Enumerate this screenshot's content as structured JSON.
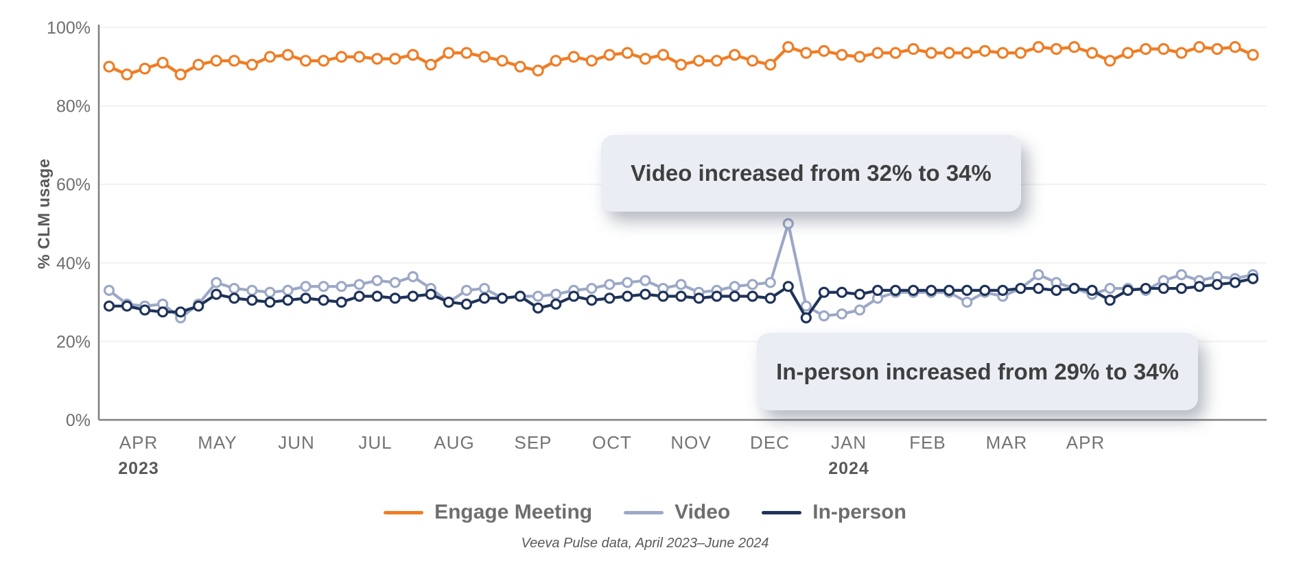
{
  "chart_data": {
    "type": "line",
    "title": "",
    "ylabel": "% CLM usage",
    "ylim": [
      0,
      100
    ],
    "yticks": [
      0,
      20,
      40,
      60,
      80,
      100
    ],
    "ytick_suffix": "%",
    "grid": true,
    "legend_position": "bottom",
    "x_unit": "weekly",
    "x_months": [
      {
        "label": "APR",
        "year": "2023"
      },
      {
        "label": "MAY"
      },
      {
        "label": "JUN"
      },
      {
        "label": "JUL"
      },
      {
        "label": "AUG"
      },
      {
        "label": "SEP"
      },
      {
        "label": "OCT"
      },
      {
        "label": "NOV"
      },
      {
        "label": "DEC"
      },
      {
        "label": "JAN",
        "year": "2024"
      },
      {
        "label": "FEB"
      },
      {
        "label": "MAR"
      },
      {
        "label": "APR"
      }
    ],
    "series": [
      {
        "name": "Engage Meeting",
        "color": "#EF7D25",
        "values": [
          90,
          88,
          89.5,
          91,
          88,
          90.5,
          91.5,
          91.5,
          90.5,
          92.5,
          93,
          91.5,
          91.5,
          92.5,
          92.5,
          92,
          92,
          93,
          90.5,
          93.5,
          93.5,
          92.5,
          91.5,
          90,
          89,
          91.5,
          92.5,
          91.5,
          93,
          93.5,
          92,
          93,
          90.5,
          91.5,
          91.5,
          93,
          91.5,
          90.5,
          95,
          93.5,
          94,
          93,
          92.5,
          93.5,
          93.5,
          94.5,
          93.5,
          93.5,
          93.5,
          94,
          93.5,
          93.5,
          95,
          94.5,
          95,
          93.5,
          91.5,
          93.5,
          94.5,
          94.5,
          93.5,
          95,
          94.5,
          95,
          93
        ]
      },
      {
        "name": "Video",
        "color": "#9CA8C6",
        "values": [
          33,
          29.5,
          29,
          29.5,
          26,
          29.5,
          35,
          33.5,
          33,
          32.5,
          33,
          34,
          34,
          34,
          34.5,
          35.5,
          35,
          36.5,
          33.5,
          30,
          33,
          33.5,
          31,
          31.5,
          31.5,
          32,
          33,
          33.5,
          34.5,
          35,
          35.5,
          33.5,
          34.5,
          32.5,
          33,
          34,
          34.5,
          35,
          50,
          29,
          26.5,
          27,
          28,
          31,
          32.5,
          32.5,
          32.5,
          32.5,
          30,
          32.5,
          31.5,
          33.5,
          37,
          35,
          33.5,
          32,
          33.5,
          33.5,
          33,
          35.5,
          37,
          35.5,
          36.5,
          36,
          37
        ]
      },
      {
        "name": "In-person",
        "color": "#1F3359",
        "values": [
          29,
          29,
          28,
          27.5,
          27.5,
          29,
          32,
          31,
          30.5,
          30,
          30.5,
          31,
          30.5,
          30,
          31.5,
          31.5,
          31,
          31.5,
          32,
          30,
          29.5,
          31,
          31,
          31.5,
          28.5,
          29.5,
          31.5,
          30.5,
          31,
          31.5,
          32,
          31.5,
          31.5,
          31,
          31.5,
          31.5,
          31.5,
          31,
          34,
          26,
          32.5,
          32.5,
          32,
          33,
          33,
          33,
          33,
          33,
          33,
          33,
          33,
          33.5,
          33.5,
          33,
          33.5,
          33,
          30.5,
          33,
          33.5,
          33.5,
          33.5,
          34,
          34.5,
          35,
          36
        ]
      }
    ],
    "annotations": [
      {
        "text": "Video increased from 32% to 34%"
      },
      {
        "text": "In-person increased from 29% to 34%"
      }
    ],
    "style": {
      "axis_color": "#7F7F7F",
      "grid_color": "#F1F1F1",
      "tick_label_color": "#6E6E6E",
      "month_label_color": "#737373",
      "year_label_color": "#595959",
      "ylabel_color": "#595959",
      "marker_fill": "#FFFFFF",
      "callout_bg": "#EAEEF4",
      "callout_text_color": "#3F3F3F",
      "legend_text_color": "#6E6E6E",
      "footer_color": "#595959"
    }
  },
  "footer": {
    "source_note": "Veeva Pulse data, April 2023–June 2024"
  }
}
